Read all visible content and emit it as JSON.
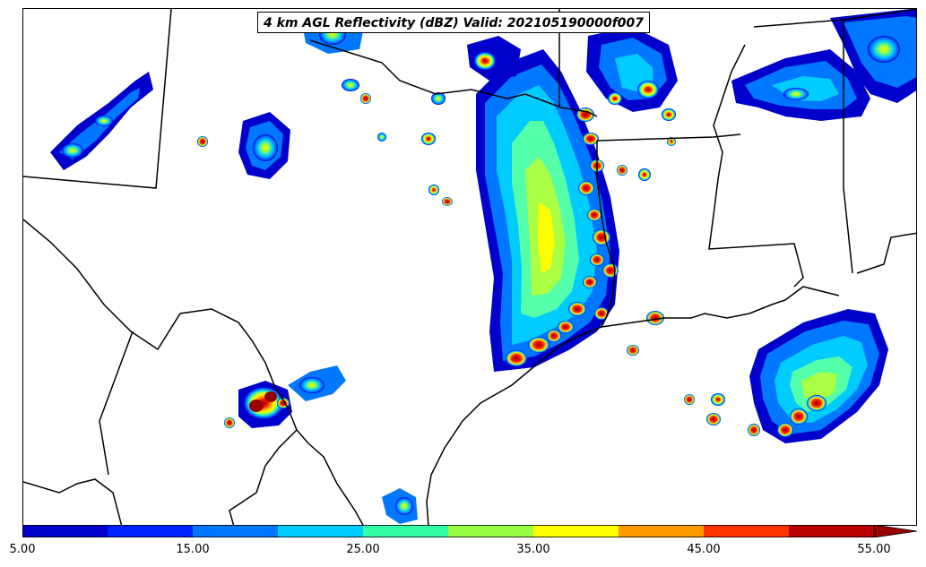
{
  "title": "4 km AGL Reflectivity (dBZ) Valid: 202105190000f007",
  "colorbar": {
    "colors": [
      "#0000cc",
      "#0022ff",
      "#0077ff",
      "#00ccff",
      "#33ffaa",
      "#99ff44",
      "#ffff00",
      "#ff9900",
      "#ff3300",
      "#bb0000"
    ],
    "extend_color": "#990000",
    "tick_labels": [
      "5.00",
      "15.00",
      "25.00",
      "35.00",
      "45.00",
      "55.00"
    ]
  }
}
